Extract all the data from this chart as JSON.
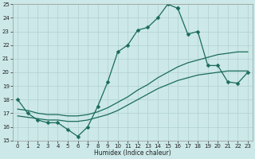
{
  "title": "",
  "xlabel": "Humidex (Indice chaleur)",
  "background_color": "#cce8e8",
  "grid_color": "#b0d0d0",
  "line_color": "#1a6b5a",
  "xlim": [
    -0.5,
    23.5
  ],
  "ylim": [
    15,
    25
  ],
  "yticks": [
    15,
    16,
    17,
    18,
    19,
    20,
    21,
    22,
    23,
    24,
    25
  ],
  "xticks": [
    0,
    1,
    2,
    3,
    4,
    5,
    6,
    7,
    8,
    9,
    10,
    11,
    12,
    13,
    14,
    15,
    16,
    17,
    18,
    19,
    20,
    21,
    22,
    23
  ],
  "series": [
    {
      "x": [
        0,
        1,
        2,
        3,
        4,
        5,
        6,
        7,
        8,
        9,
        10,
        11,
        12,
        13,
        14,
        15,
        16
      ],
      "y": [
        18.0,
        17.0,
        16.5,
        16.3,
        16.3,
        15.8,
        15.3,
        16.0,
        17.5,
        19.3,
        21.5,
        22.0,
        23.1,
        23.3,
        24.0,
        25.0,
        24.7
      ],
      "marker": "D",
      "markersize": 2.5,
      "lw": 0.9
    },
    {
      "x": [
        16,
        17,
        18,
        19,
        20,
        21,
        22,
        23
      ],
      "y": [
        24.7,
        22.8,
        23.0,
        20.5,
        20.5,
        19.3,
        19.2,
        20.0
      ],
      "marker": "D",
      "markersize": 2.5,
      "lw": 0.9
    },
    {
      "x": [
        0,
        1,
        2,
        3,
        4,
        5,
        6,
        7,
        8,
        9,
        10,
        11,
        12,
        13,
        14,
        15,
        16,
        17,
        18,
        19,
        20,
        21,
        22,
        23
      ],
      "y": [
        17.3,
        17.2,
        17.0,
        16.9,
        16.9,
        16.8,
        16.8,
        16.9,
        17.1,
        17.4,
        17.8,
        18.2,
        18.7,
        19.1,
        19.6,
        20.0,
        20.4,
        20.7,
        20.9,
        21.1,
        21.3,
        21.4,
        21.5,
        21.5
      ],
      "marker": null,
      "markersize": 0,
      "lw": 0.9
    },
    {
      "x": [
        0,
        1,
        2,
        3,
        4,
        5,
        6,
        7,
        8,
        9,
        10,
        11,
        12,
        13,
        14,
        15,
        16,
        17,
        18,
        19,
        20,
        21,
        22,
        23
      ],
      "y": [
        16.8,
        16.7,
        16.6,
        16.5,
        16.5,
        16.4,
        16.4,
        16.5,
        16.7,
        16.9,
        17.2,
        17.6,
        18.0,
        18.4,
        18.8,
        19.1,
        19.4,
        19.6,
        19.8,
        19.9,
        20.0,
        20.1,
        20.1,
        20.1
      ],
      "marker": null,
      "markersize": 0,
      "lw": 0.9
    }
  ]
}
